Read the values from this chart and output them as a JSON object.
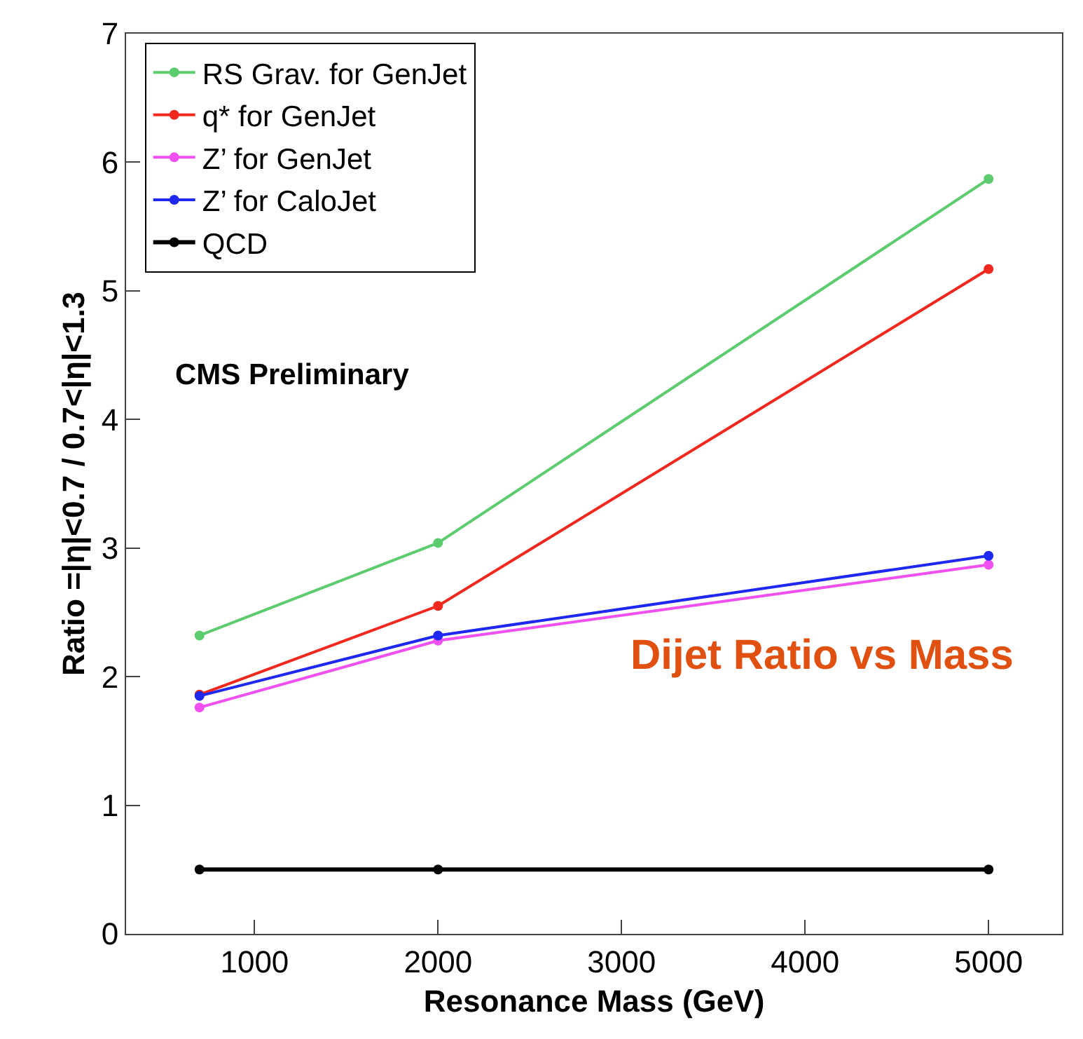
{
  "chart_data": {
    "type": "line",
    "title": "Dijet Ratio vs Mass",
    "xlabel": "Resonance Mass (GeV)",
    "ylabel": "Ratio =|η|<0.7 / 0.7<|η|<1.3",
    "x": [
      700,
      2000,
      5000
    ],
    "xlim": [
      300,
      5400
    ],
    "xticks": [
      1000,
      2000,
      3000,
      4000,
      5000
    ],
    "ylim": [
      0,
      7
    ],
    "yticks": [
      0,
      1,
      2,
      3,
      4,
      5,
      6,
      7
    ],
    "series": [
      {
        "name": "RS Grav. for GenJet",
        "color": "#5ccc6e",
        "values": [
          2.32,
          3.04,
          5.87
        ]
      },
      {
        "name": "q* for GenJet",
        "color": "#f0281e",
        "values": [
          1.86,
          2.55,
          5.17
        ]
      },
      {
        "name": "Z’ for GenJet",
        "color": "#f050f0",
        "values": [
          1.76,
          2.28,
          2.87
        ]
      },
      {
        "name": "Z’ for CaloJet",
        "color": "#1e28f0",
        "values": [
          1.85,
          2.32,
          2.94
        ]
      },
      {
        "name": "QCD",
        "color": "#000000",
        "values": [
          0.5,
          0.5,
          0.5
        ]
      }
    ],
    "annotations": [
      "CMS Preliminary"
    ],
    "legend": "top left",
    "marker": "circle"
  }
}
